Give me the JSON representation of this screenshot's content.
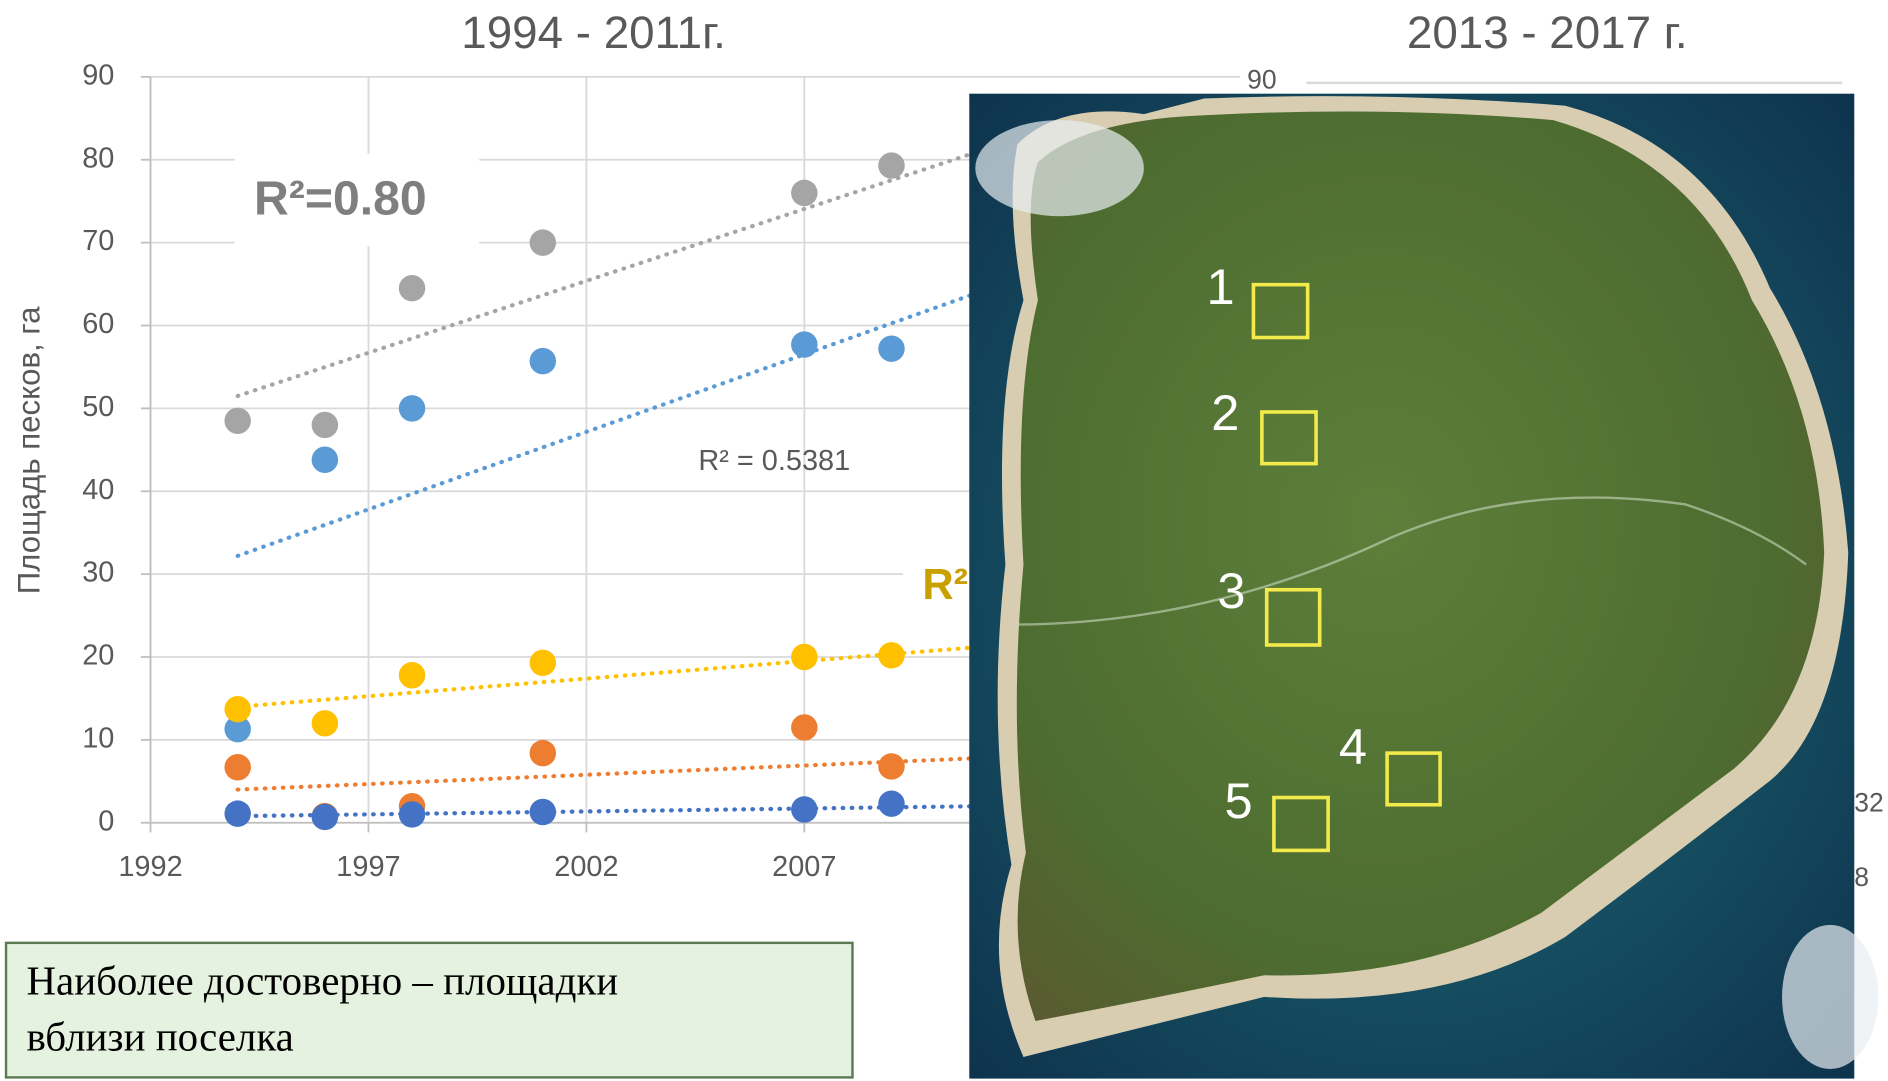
{
  "chart_data": {
    "type": "scatter",
    "title": "1994 - 2011г.",
    "y_label": "Площадь песков, га",
    "x": [
      1994,
      1996,
      1998,
      2001,
      2007,
      2009
    ],
    "xlim": [
      1992,
      2017
    ],
    "xticks": [
      1992,
      1997,
      2002,
      2007
    ],
    "ylim": [
      0,
      90
    ],
    "yticks": [
      0,
      10,
      20,
      30,
      40,
      50,
      60,
      70,
      80,
      90
    ],
    "grid": true,
    "trend_x": [
      1994,
      2011
    ],
    "series": [
      {
        "color": "#a5a5a5",
        "values": [
          48.5,
          48,
          64.5,
          70,
          76,
          79.3
        ],
        "trend": [
          51.5,
          81
        ]
      },
      {
        "color": "#5b9bd5",
        "values": [
          11.3,
          43.8,
          50,
          55.7,
          57.7,
          57.2
        ],
        "trend": [
          32.2,
          64
        ]
      },
      {
        "color": "#ffc000",
        "values": [
          13.7,
          12,
          17.8,
          19.3,
          20,
          20.2
        ],
        "trend": [
          14,
          21.2
        ]
      },
      {
        "color": "#ed7d31",
        "values": [
          6.7,
          0.8,
          2,
          8.4,
          11.5,
          6.8
        ],
        "trend": [
          4,
          7.8
        ]
      },
      {
        "color": "#4472c4",
        "values": [
          1.1,
          0.7,
          1,
          1.3,
          1.6,
          2.3
        ],
        "trend": [
          0.8,
          2
        ]
      }
    ],
    "annotations": [
      "R²=0.80",
      "R² = 0.5381",
      "R²"
    ]
  },
  "right_panel": {
    "title": "2013 - 2017 г.",
    "axis_labels": [
      "90",
      "32",
      "8"
    ],
    "site_labels": [
      "1",
      "2",
      "3",
      "4",
      "5"
    ]
  },
  "note": {
    "lines": [
      "Наиболее достоверно – площадки",
      "вблизи поселка"
    ]
  }
}
